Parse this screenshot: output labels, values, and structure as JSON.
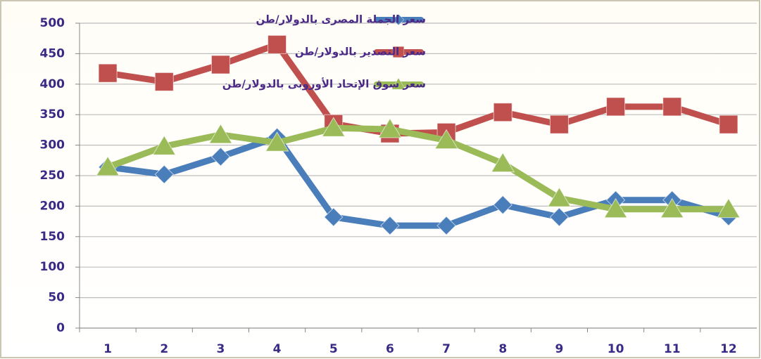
{
  "chart_data": {
    "type": "line",
    "categories": [
      "1",
      "2",
      "3",
      "4",
      "5",
      "6",
      "7",
      "8",
      "9",
      "10",
      "11",
      "12"
    ],
    "series": [
      {
        "name": "سعر الجملة المصرى بالدولار/طن",
        "color": "#4a7ebb",
        "marker": "diamond",
        "values": [
          264,
          252,
          281,
          313,
          182,
          168,
          168,
          202,
          182,
          210,
          210,
          183
        ]
      },
      {
        "name": "سعر التصدير بالدولار/طن",
        "color": "#c0504d",
        "marker": "square",
        "values": [
          418,
          404,
          432,
          465,
          335,
          319,
          321,
          354,
          334,
          363,
          363,
          334
        ]
      },
      {
        "name": "سعر سوق الإتحاد الأوروبى بالدولار/طن",
        "color": "#9bbb59",
        "marker": "triangle",
        "values": [
          264,
          298,
          317,
          304,
          328,
          326,
          308,
          270,
          213,
          195,
          195,
          195
        ]
      }
    ],
    "ylim": [
      0,
      500
    ],
    "yticks": [
      0,
      50,
      100,
      150,
      200,
      250,
      300,
      350,
      400,
      450,
      500
    ],
    "grid": true
  }
}
